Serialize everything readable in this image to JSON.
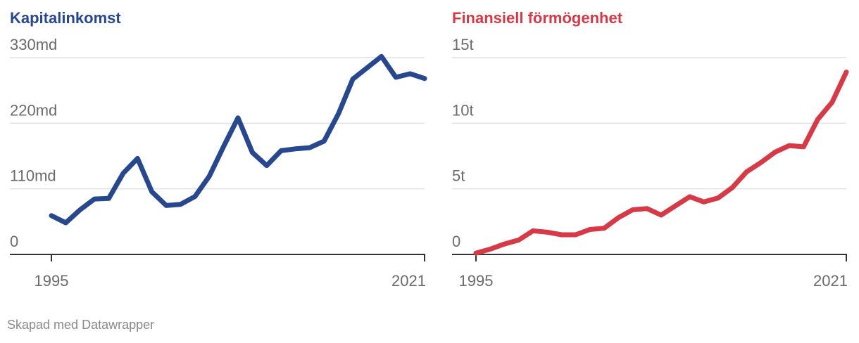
{
  "chart_data": [
    {
      "type": "line",
      "title": "Kapitalinkomst",
      "color": "#27478f",
      "xlabel": "",
      "ylabel": "",
      "x": [
        1995,
        1996,
        1997,
        1998,
        1999,
        2000,
        2001,
        2002,
        2003,
        2004,
        2005,
        2006,
        2007,
        2008,
        2009,
        2010,
        2011,
        2012,
        2013,
        2014,
        2015,
        2016,
        2017,
        2018,
        2019,
        2020,
        2021
      ],
      "values": [
        65,
        53,
        75,
        93,
        94,
        136,
        161,
        105,
        82,
        84,
        97,
        131,
        181,
        229,
        171,
        149,
        174,
        177,
        179,
        190,
        236,
        294,
        313,
        332,
        297,
        303,
        295
      ],
      "ylim": [
        0,
        330
      ],
      "yticks": [
        0,
        110,
        220,
        330
      ],
      "ytick_labels": [
        "0",
        "110md",
        "220md",
        "330md"
      ],
      "xlim": [
        1995,
        2021
      ],
      "xticks": [
        1995,
        2021
      ],
      "xtick_labels": [
        "1995",
        "2021"
      ],
      "grid": true
    },
    {
      "type": "line",
      "title": "Finansiell förmögenhet",
      "color": "#d63a47",
      "xlabel": "",
      "ylabel": "",
      "x": [
        1995,
        1996,
        1997,
        1998,
        1999,
        2000,
        2001,
        2002,
        2003,
        2004,
        2005,
        2006,
        2007,
        2008,
        2009,
        2010,
        2011,
        2012,
        2013,
        2014,
        2015,
        2016,
        2017,
        2018,
        2019,
        2020,
        2021
      ],
      "values": [
        0.1,
        0.4,
        0.8,
        1.1,
        1.8,
        1.7,
        1.5,
        1.5,
        1.9,
        2.0,
        2.8,
        3.4,
        3.5,
        3.0,
        3.7,
        4.4,
        4.0,
        4.3,
        5.1,
        6.3,
        7.0,
        7.8,
        8.3,
        8.2,
        10.3,
        11.6,
        13.9
      ],
      "ylim": [
        0,
        15
      ],
      "yticks": [
        0,
        5,
        10,
        15
      ],
      "ytick_labels": [
        "0",
        "5t",
        "10t",
        "15t"
      ],
      "xlim": [
        1995,
        2021
      ],
      "xticks": [
        1995,
        2021
      ],
      "xtick_labels": [
        "1995",
        "2021"
      ],
      "grid": true
    }
  ],
  "footer": {
    "credit": "Skapad med Datawrapper"
  }
}
